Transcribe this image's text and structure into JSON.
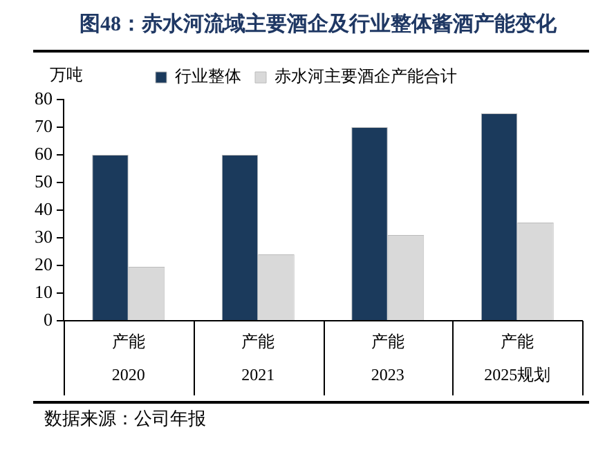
{
  "chart_data": {
    "type": "bar",
    "title": "图48：赤水河流域主要酒企及行业整体酱酒产能变化",
    "ylabel": "万吨",
    "categories": [
      "产能\n2020",
      "产能\n2021",
      "产能\n2023",
      "产能\n2025规划"
    ],
    "series": [
      {
        "name": "行业整体",
        "color": "#1b3a5c",
        "values": [
          60,
          60,
          70,
          75
        ]
      },
      {
        "name": "赤水河主要酒企产能合计",
        "color": "#d9d9d9",
        "values": [
          19.5,
          24,
          31,
          35.5
        ]
      }
    ],
    "ylim": [
      0,
      80
    ],
    "yticks": [
      0,
      10,
      20,
      30,
      40,
      50,
      60,
      70,
      80
    ],
    "grid": false,
    "legend": "top",
    "annotations": [
      "数据来源：公司年报"
    ]
  }
}
